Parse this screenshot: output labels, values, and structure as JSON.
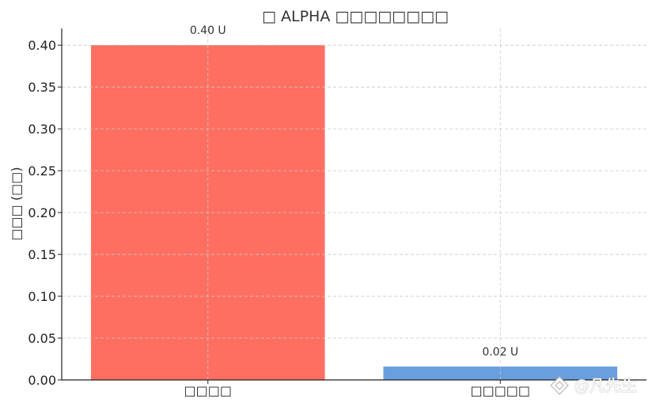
{
  "chart_data": {
    "type": "bar",
    "title": "□ ALPHA □□□□□□□□",
    "ylabel": "□□□ (□□)",
    "xlabel": "",
    "categories": [
      "□□□□",
      "□□□□□"
    ],
    "values": [
      0.4,
      0.016
    ],
    "data_labels": [
      "0.40 U",
      "0.02 U"
    ],
    "yticks": [
      "0.00",
      "0.05",
      "0.10",
      "0.15",
      "0.20",
      "0.25",
      "0.30",
      "0.35",
      "0.40"
    ],
    "ylim": [
      0,
      0.42
    ],
    "grid": true,
    "colors": [
      "#ff6f61",
      "#6a9fdf"
    ]
  },
  "watermark": "@凡先生"
}
